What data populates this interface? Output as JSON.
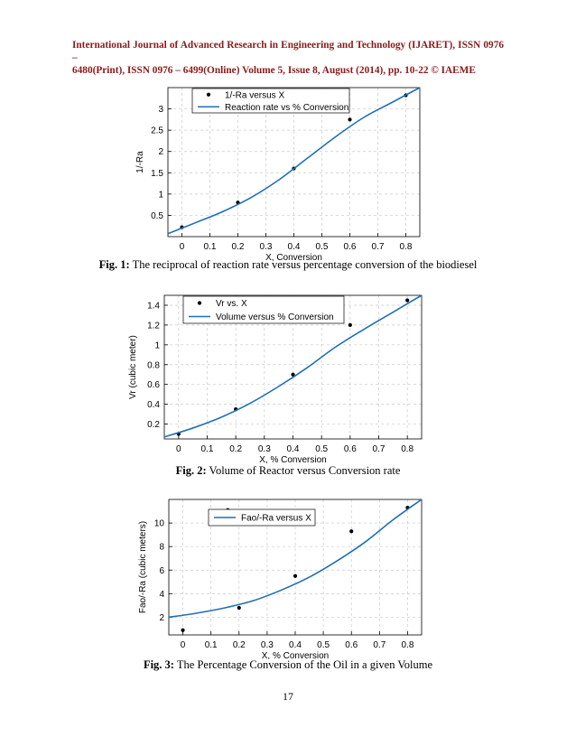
{
  "header": {
    "line1": "International Journal of Advanced Research in Engineering and Technology (IJARET), ISSN 0976 –",
    "line2": "6480(Print), ISSN 0976 – 6499(Online) Volume 5, Issue 8, August (2014), pp. 10-22 © IAEME"
  },
  "chart_data": [
    {
      "type": "scatter+line",
      "xlabel": "X, Conversion",
      "ylabel": "1/-Ra",
      "xlim": [
        -0.05,
        0.85
      ],
      "ylim": [
        0,
        3.5
      ],
      "xticks": [
        "0",
        "0.1",
        "0.2",
        "0.3",
        "0.4",
        "0.5",
        "0.6",
        "0.7",
        "0.8"
      ],
      "yticks": [
        "0.5",
        "1",
        "1.5",
        "2",
        "2.5",
        "3"
      ],
      "grid": true,
      "legend_position": "top",
      "series": [
        {
          "name": "1/-Ra versus X",
          "kind": "points",
          "color": "#000000",
          "x": [
            0,
            0.2,
            0.4,
            0.6,
            0.8
          ],
          "y": [
            0.22,
            0.8,
            1.6,
            2.75,
            3.32
          ]
        },
        {
          "name": "Reaction rate vs % Conversion",
          "kind": "line",
          "color": "#1f6fb5",
          "x": [
            -0.05,
            0.05,
            0.15,
            0.25,
            0.35,
            0.45,
            0.55,
            0.65,
            0.75,
            0.85
          ],
          "y": [
            0.07,
            0.33,
            0.6,
            0.93,
            1.35,
            1.85,
            2.35,
            2.8,
            3.15,
            3.5
          ]
        }
      ]
    },
    {
      "type": "scatter+line",
      "xlabel": "X, % Conversion",
      "ylabel": "Vr (cubic meter)",
      "xlim": [
        -0.05,
        0.85
      ],
      "ylim": [
        0.05,
        1.5
      ],
      "xticks": [
        "0",
        "0.1",
        "0.2",
        "0.3",
        "0.4",
        "0.5",
        "0.6",
        "0.7",
        "0.8"
      ],
      "yticks": [
        "0.2",
        "0.4",
        "0.6",
        "0.8",
        "1",
        "1.2",
        "1.4"
      ],
      "grid": true,
      "legend_position": "top",
      "series": [
        {
          "name": "Vr vs. X",
          "kind": "points",
          "color": "#000000",
          "x": [
            0,
            0.2,
            0.4,
            0.6,
            0.8
          ],
          "y": [
            0.1,
            0.35,
            0.7,
            1.2,
            1.45
          ]
        },
        {
          "name": "Volume versus % Conversion",
          "kind": "line",
          "color": "#1f6fb5",
          "x": [
            -0.05,
            0.05,
            0.15,
            0.25,
            0.35,
            0.45,
            0.55,
            0.65,
            0.75,
            0.85
          ],
          "y": [
            0.07,
            0.16,
            0.27,
            0.41,
            0.58,
            0.77,
            0.98,
            1.16,
            1.33,
            1.5
          ]
        }
      ]
    },
    {
      "type": "scatter+line",
      "xlabel": "X, % Conversion",
      "ylabel": "Fao/-Ra (cubic meters)",
      "xlim": [
        -0.05,
        0.85
      ],
      "ylim": [
        0.5,
        12
      ],
      "xticks": [
        "0",
        "0.1",
        "0.2",
        "0.3",
        "0.4",
        "0.5",
        "0.6",
        "0.7",
        "0.8"
      ],
      "yticks": [
        "2",
        "4",
        "6",
        "8",
        "10"
      ],
      "grid": true,
      "legend_position": "top",
      "series": [
        {
          "name": "",
          "kind": "points",
          "color": "#000000",
          "x": [
            0,
            0.2,
            0.4,
            0.6,
            0.8,
            0.16
          ],
          "y": [
            0.9,
            2.8,
            5.5,
            9.3,
            11.3,
            11.1
          ]
        },
        {
          "name": "Fao/-Ra versus X",
          "kind": "line",
          "color": "#1f6fb5",
          "x": [
            -0.05,
            0.05,
            0.15,
            0.25,
            0.35,
            0.45,
            0.55,
            0.65,
            0.75,
            0.85
          ],
          "y": [
            2.0,
            2.35,
            2.8,
            3.4,
            4.3,
            5.4,
            6.8,
            8.4,
            10.3,
            12.0
          ]
        }
      ]
    }
  ],
  "captions": [
    {
      "label": "Fig. 1:",
      "text": " The reciprocal of reaction rate versus percentage conversion of the biodiesel"
    },
    {
      "label": "Fig. 2:",
      "text": " Volume of Reactor versus Conversion rate"
    },
    {
      "label": "Fig. 3:",
      "text": " The Percentage Conversion of the Oil in a given Volume"
    }
  ],
  "page_number": "17"
}
